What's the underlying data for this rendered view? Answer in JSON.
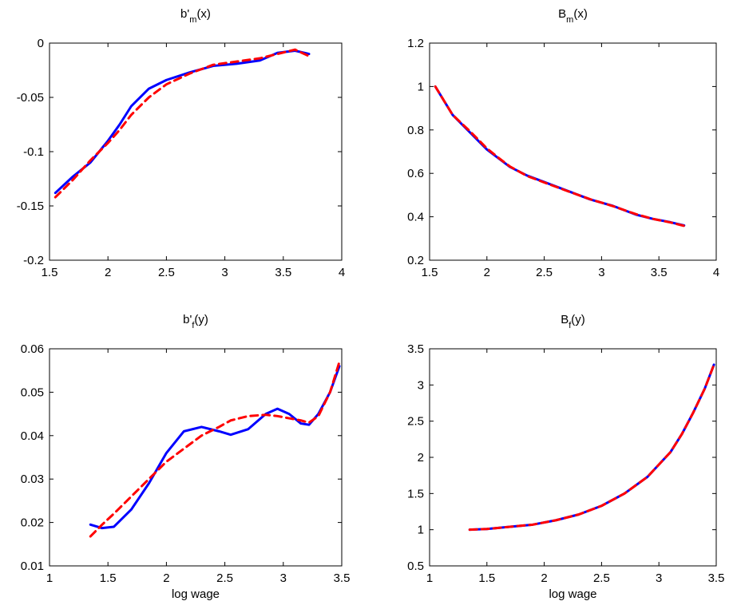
{
  "chart_data": [
    {
      "type": "line",
      "title": [
        "b'",
        "m",
        "(x)"
      ],
      "x": [
        1.55,
        1.7,
        1.85,
        2.0,
        2.1,
        2.2,
        2.35,
        2.5,
        2.7,
        2.9,
        3.1,
        3.3,
        3.45,
        3.6,
        3.72
      ],
      "series": [
        {
          "color": "#0000ff",
          "dash": false,
          "values": [
            -0.138,
            -0.123,
            -0.11,
            -0.09,
            -0.075,
            -0.058,
            -0.042,
            -0.034,
            -0.027,
            -0.021,
            -0.019,
            -0.016,
            -0.009,
            -0.007,
            -0.01
          ]
        },
        {
          "color": "#ff0000",
          "dash": true,
          "values": [
            -0.142,
            -0.126,
            -0.108,
            -0.092,
            -0.08,
            -0.066,
            -0.05,
            -0.038,
            -0.028,
            -0.02,
            -0.017,
            -0.014,
            -0.01,
            -0.006,
            -0.012
          ]
        }
      ],
      "xlim": [
        1.5,
        4
      ],
      "xticks": [
        1.5,
        2,
        2.5,
        3,
        3.5,
        4
      ],
      "ylim": [
        -0.2,
        0
      ],
      "yticks": [
        -0.2,
        -0.15,
        -0.1,
        -0.05,
        0
      ]
    },
    {
      "type": "line",
      "title": [
        "B",
        "m",
        "(x)"
      ],
      "x": [
        1.55,
        1.7,
        1.85,
        2.0,
        2.1,
        2.2,
        2.35,
        2.5,
        2.7,
        2.9,
        3.1,
        3.3,
        3.45,
        3.6,
        3.72
      ],
      "series": [
        {
          "color": "#0000ff",
          "dash": false,
          "values": [
            1.0,
            0.87,
            0.79,
            0.71,
            0.67,
            0.63,
            0.59,
            0.56,
            0.52,
            0.48,
            0.45,
            0.41,
            0.39,
            0.375,
            0.36
          ]
        },
        {
          "color": "#ff0000",
          "dash": true,
          "values": [
            1.0,
            0.87,
            0.795,
            0.715,
            0.672,
            0.632,
            0.588,
            0.558,
            0.519,
            0.481,
            0.449,
            0.412,
            0.39,
            0.374,
            0.358
          ]
        }
      ],
      "xlim": [
        1.5,
        4
      ],
      "xticks": [
        1.5,
        2,
        2.5,
        3,
        3.5,
        4
      ],
      "ylim": [
        0.2,
        1.2
      ],
      "yticks": [
        0.2,
        0.4,
        0.6,
        0.8,
        1,
        1.2
      ]
    },
    {
      "type": "line",
      "title": [
        "b'",
        "f",
        "(y)"
      ],
      "xlabel": "log wage",
      "x": [
        1.35,
        1.45,
        1.55,
        1.7,
        1.85,
        2.0,
        2.15,
        2.3,
        2.45,
        2.55,
        2.7,
        2.85,
        2.95,
        3.05,
        3.15,
        3.22,
        3.3,
        3.4,
        3.48
      ],
      "series": [
        {
          "color": "#0000ff",
          "dash": false,
          "values": [
            0.0195,
            0.0187,
            0.019,
            0.023,
            0.029,
            0.036,
            0.041,
            0.042,
            0.041,
            0.0402,
            0.0415,
            0.045,
            0.0462,
            0.045,
            0.0428,
            0.0425,
            0.045,
            0.05,
            0.056
          ]
        },
        {
          "color": "#ff0000",
          "dash": true,
          "values": [
            0.0168,
            0.0195,
            0.022,
            0.026,
            0.03,
            0.034,
            0.037,
            0.04,
            0.042,
            0.0435,
            0.0445,
            0.0448,
            0.0445,
            0.044,
            0.0435,
            0.043,
            0.0445,
            0.05,
            0.057
          ]
        }
      ],
      "xlim": [
        1,
        3.5
      ],
      "xticks": [
        1,
        1.5,
        2,
        2.5,
        3,
        3.5
      ],
      "ylim": [
        0.01,
        0.06
      ],
      "yticks": [
        0.01,
        0.02,
        0.03,
        0.04,
        0.05,
        0.06
      ]
    },
    {
      "type": "line",
      "title": [
        "B",
        "f",
        "(y)"
      ],
      "xlabel": "log wage",
      "x": [
        1.35,
        1.5,
        1.7,
        1.9,
        2.1,
        2.3,
        2.5,
        2.7,
        2.9,
        3.1,
        3.2,
        3.3,
        3.4,
        3.48
      ],
      "series": [
        {
          "color": "#0000ff",
          "dash": false,
          "values": [
            1.0,
            1.01,
            1.04,
            1.07,
            1.13,
            1.21,
            1.33,
            1.5,
            1.73,
            2.07,
            2.32,
            2.62,
            2.95,
            3.28
          ]
        },
        {
          "color": "#ff0000",
          "dash": true,
          "values": [
            1.0,
            1.01,
            1.04,
            1.07,
            1.13,
            1.21,
            1.33,
            1.5,
            1.73,
            2.07,
            2.32,
            2.62,
            2.95,
            3.28
          ]
        }
      ],
      "xlim": [
        1,
        3.5
      ],
      "xticks": [
        1,
        1.5,
        2,
        2.5,
        3,
        3.5
      ],
      "ylim": [
        0.5,
        3.5
      ],
      "yticks": [
        0.5,
        1,
        1.5,
        2,
        2.5,
        3,
        3.5
      ]
    }
  ]
}
